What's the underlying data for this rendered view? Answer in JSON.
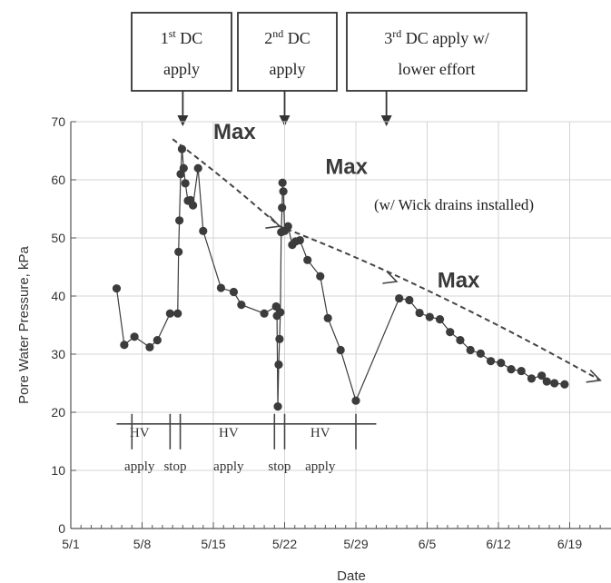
{
  "chart_data": {
    "type": "line",
    "xlabel": "Date",
    "ylabel": "Pore Water Pressure, kPa",
    "ylim": [
      0,
      70
    ],
    "yticks": [
      0,
      10,
      20,
      30,
      40,
      50,
      60,
      70
    ],
    "xlim": [
      "2000-05-01",
      "2000-06-22"
    ],
    "xticks": [
      {
        "date": "2000-05-01",
        "label": "5/1"
      },
      {
        "date": "2000-05-08",
        "label": "5/8"
      },
      {
        "date": "2000-05-15",
        "label": "5/15"
      },
      {
        "date": "2000-05-22",
        "label": "5/22"
      },
      {
        "date": "2000-05-29",
        "label": "5/29"
      },
      {
        "date": "2000-06-05",
        "label": "6/5"
      },
      {
        "date": "2000-06-12",
        "label": "6/12"
      },
      {
        "date": "2000-06-19",
        "label": "6/19"
      }
    ],
    "grid": true,
    "series": [
      {
        "points": [
          [
            "2000-05-05T12:00",
            41.3
          ],
          [
            "2000-05-06T06:00",
            31.6
          ],
          [
            "2000-05-07T06:00",
            33.0
          ],
          [
            "2000-05-08T18:00",
            31.2
          ],
          [
            "2000-05-09T12:00",
            32.4
          ],
          [
            "2000-05-10T18:00",
            37.0
          ],
          [
            "2000-05-11T12:00",
            37.0
          ],
          [
            "2000-05-11T14:00",
            47.6
          ],
          [
            "2000-05-11T16:00",
            53.0
          ],
          [
            "2000-05-11T19:00",
            61.0
          ],
          [
            "2000-05-11T22:00",
            65.3
          ],
          [
            "2000-05-12T02:00",
            62.0
          ],
          [
            "2000-05-12T06:00",
            59.4
          ],
          [
            "2000-05-12T12:00",
            56.4
          ],
          [
            "2000-05-12T18:00",
            56.5
          ],
          [
            "2000-05-13T00:00",
            55.6
          ],
          [
            "2000-05-13T12:00",
            62.0
          ],
          [
            "2000-05-14T00:00",
            51.2
          ],
          [
            "2000-05-15T18:00",
            41.4
          ],
          [
            "2000-05-17T00:00",
            40.7
          ],
          [
            "2000-05-17T18:00",
            38.5
          ],
          [
            "2000-05-20T00:00",
            37.0
          ],
          [
            "2000-05-21T04:00",
            38.2
          ],
          [
            "2000-05-21T06:00",
            36.6
          ],
          [
            "2000-05-21T08:00",
            21.0
          ],
          [
            "2000-05-21T10:00",
            28.2
          ],
          [
            "2000-05-21T12:00",
            32.6
          ],
          [
            "2000-05-21T14:00",
            37.2
          ],
          [
            "2000-05-21T16:00",
            51.0
          ],
          [
            "2000-05-21T18:00",
            55.2
          ],
          [
            "2000-05-21T19:00",
            59.5
          ],
          [
            "2000-05-21T21:00",
            58.0
          ],
          [
            "2000-05-22T00:00",
            51.2
          ],
          [
            "2000-05-22T08:00",
            52.0
          ],
          [
            "2000-05-22T18:00",
            48.8
          ],
          [
            "2000-05-23T02:00",
            49.4
          ],
          [
            "2000-05-23T12:00",
            49.6
          ],
          [
            "2000-05-24T06:00",
            46.2
          ],
          [
            "2000-05-25T12:00",
            43.4
          ],
          [
            "2000-05-26T06:00",
            36.2
          ],
          [
            "2000-05-27T12:00",
            30.7
          ],
          [
            "2000-05-29T00:00",
            22.0
          ],
          [
            "2000-06-02T06:00",
            39.6
          ],
          [
            "2000-06-03T06:00",
            39.3
          ],
          [
            "2000-06-04T06:00",
            37.1
          ],
          [
            "2000-06-05T06:00",
            36.4
          ],
          [
            "2000-06-06T06:00",
            36.0
          ],
          [
            "2000-06-07T06:00",
            33.8
          ],
          [
            "2000-06-08T06:00",
            32.4
          ],
          [
            "2000-06-09T06:00",
            30.7
          ],
          [
            "2000-06-10T06:00",
            30.1
          ],
          [
            "2000-06-11T06:00",
            28.8
          ],
          [
            "2000-06-12T06:00",
            28.5
          ],
          [
            "2000-06-13T06:00",
            27.4
          ],
          [
            "2000-06-14T06:00",
            27.1
          ],
          [
            "2000-06-15T06:00",
            25.8
          ],
          [
            "2000-06-16T06:00",
            26.3
          ],
          [
            "2000-06-16T18:00",
            25.3
          ],
          [
            "2000-06-17T12:00",
            25.0
          ],
          [
            "2000-06-18T12:00",
            24.8
          ]
        ]
      }
    ],
    "trend_line": [
      [
        "2000-05-11T00:00",
        67.0
      ],
      [
        "2000-05-21T12:00",
        52.0
      ],
      [
        "2000-06-05T00:00",
        41.0
      ],
      [
        "2000-06-22T00:00",
        25.5
      ]
    ],
    "trend_arrows": [
      [
        "2000-05-21T12:00",
        52.0
      ],
      [
        "2000-06-02T00:00",
        42.5
      ],
      [
        "2000-06-22T00:00",
        25.5
      ]
    ],
    "annotations": [
      {
        "line1_base": "1",
        "line1_sup": "st",
        "line1_rest": " DC",
        "line2": "apply",
        "arrow_date": "2000-05-12T00:00"
      },
      {
        "line1_base": "2",
        "line1_sup": "nd",
        "line1_rest": " DC",
        "line2": "apply",
        "arrow_date": "2000-05-22T00:00"
      },
      {
        "line1_base": "3",
        "line1_sup": "rd",
        "line1_rest": " DC apply w/",
        "line2": "lower effort",
        "arrow_date": "2000-06-01T00:00"
      }
    ],
    "max_markers": [
      {
        "text": "Max",
        "date": "2000-05-15T00:00",
        "y": 67.0
      },
      {
        "text": "Max",
        "date": "2000-05-26T00:00",
        "y": 61.0
      },
      {
        "text": "Max",
        "date": "2000-06-06T00:00",
        "y": 41.5
      }
    ],
    "note": "(w/ Wick drains installed)",
    "phases": {
      "ticks": [
        "2000-05-07T00:00",
        "2000-05-10T18:00",
        "2000-05-11T18:00",
        "2000-05-21T00:00",
        "2000-05-22T00:00",
        "2000-05-29T00:00"
      ],
      "line_start": "2000-05-05T12:00",
      "line_end": "2000-05-31T00:00",
      "y": 18,
      "labels": [
        {
          "top": "HV",
          "bottom": "apply",
          "date": "2000-05-07T18:00"
        },
        {
          "top": "",
          "bottom": "stop",
          "date": "2000-05-11T06:00"
        },
        {
          "top": "HV",
          "bottom": "apply",
          "date": "2000-05-16T12:00"
        },
        {
          "top": "",
          "bottom": "stop",
          "date": "2000-05-21T12:00"
        },
        {
          "top": "HV",
          "bottom": "apply",
          "date": "2000-05-25T12:00"
        }
      ]
    },
    "colors": {
      "series": "#3c3c3c",
      "trend": "#444444",
      "grid": "#d4d4d4",
      "box_border": "#333333"
    }
  }
}
